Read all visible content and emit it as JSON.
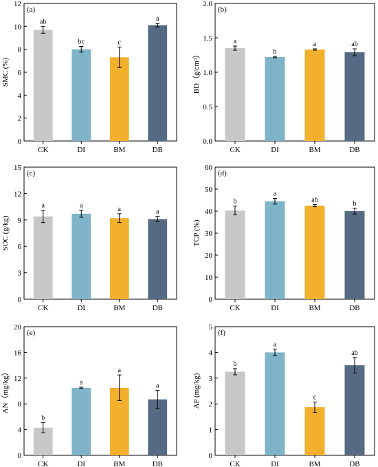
{
  "colors": {
    "CK": "#c8c8c8",
    "DI": "#7fb3c8",
    "BM": "#f2b02c",
    "DB": "#566b83",
    "axis": "#000000",
    "background": "#ffffff"
  },
  "chart_data": [
    {
      "type": "bar",
      "panel_label": "(a)",
      "ylabel": "SMC (%)",
      "categories": [
        "CK",
        "DI",
        "BM",
        "DB"
      ],
      "values": [
        9.7,
        8.0,
        7.3,
        10.1
      ],
      "errors": [
        0.3,
        0.25,
        0.9,
        0.15
      ],
      "letters": [
        "ab",
        "bc",
        "c",
        "a"
      ],
      "ylim": [
        0,
        12
      ],
      "yticks": [
        "0",
        "2",
        "4",
        "6",
        "8",
        "10",
        "12"
      ]
    },
    {
      "type": "bar",
      "panel_label": "(b)",
      "ylabel": "BD（g/cm³）",
      "categories": [
        "CK",
        "DI",
        "BM",
        "DB"
      ],
      "values": [
        1.35,
        1.22,
        1.33,
        1.29
      ],
      "errors": [
        0.03,
        0.01,
        0.01,
        0.05
      ],
      "letters": [
        "a",
        "b",
        "a",
        "ab"
      ],
      "ylim": [
        0,
        2.0
      ],
      "yticks": [
        "0.0",
        "0.5",
        "1.0",
        "1.5",
        "2.0"
      ]
    },
    {
      "type": "bar",
      "panel_label": "(c)",
      "ylabel": "SOC (g/kg)",
      "categories": [
        "CK",
        "DI",
        "BM",
        "DB"
      ],
      "values": [
        9.4,
        9.7,
        9.2,
        9.1
      ],
      "errors": [
        0.7,
        0.4,
        0.5,
        0.3
      ],
      "letters": [
        "a",
        "a",
        "a",
        "a"
      ],
      "ylim": [
        0,
        15
      ],
      "yticks": [
        "0",
        "3",
        "6",
        "9",
        "12",
        "15"
      ]
    },
    {
      "type": "bar",
      "panel_label": "(d)",
      "ylabel": "TCP (%)",
      "categories": [
        "CK",
        "DI",
        "BM",
        "DB"
      ],
      "values": [
        40.3,
        44.5,
        42.5,
        40.0
      ],
      "errors": [
        2.0,
        1.3,
        0.5,
        1.3
      ],
      "letters": [
        "b",
        "a",
        "ab",
        "b"
      ],
      "ylim": [
        0,
        60
      ],
      "yticks": [
        "0",
        "10",
        "20",
        "30",
        "40",
        "50",
        "60"
      ]
    },
    {
      "type": "bar",
      "panel_label": "(e)",
      "ylabel": "AN（mg/kg）",
      "categories": [
        "CK",
        "DI",
        "BM",
        "DB"
      ],
      "values": [
        4.3,
        10.5,
        10.5,
        8.7
      ],
      "errors": [
        0.8,
        0.1,
        2.0,
        1.4
      ],
      "letters": [
        "b",
        "a",
        "a",
        "a"
      ],
      "ylim": [
        0,
        20
      ],
      "yticks": [
        "0",
        "4",
        "8",
        "12",
        "16",
        "20"
      ]
    },
    {
      "type": "bar",
      "panel_label": "(f)",
      "ylabel": "AP (mg/kg)",
      "categories": [
        "CK",
        "DI",
        "BM",
        "DB"
      ],
      "values": [
        3.25,
        4.0,
        1.87,
        3.5
      ],
      "errors": [
        0.12,
        0.13,
        0.2,
        0.3
      ],
      "letters": [
        "b",
        "a",
        "c",
        "ab"
      ],
      "ylim": [
        0,
        5
      ],
      "yticks": [
        "0",
        "1",
        "2",
        "3",
        "4",
        "5"
      ]
    }
  ]
}
